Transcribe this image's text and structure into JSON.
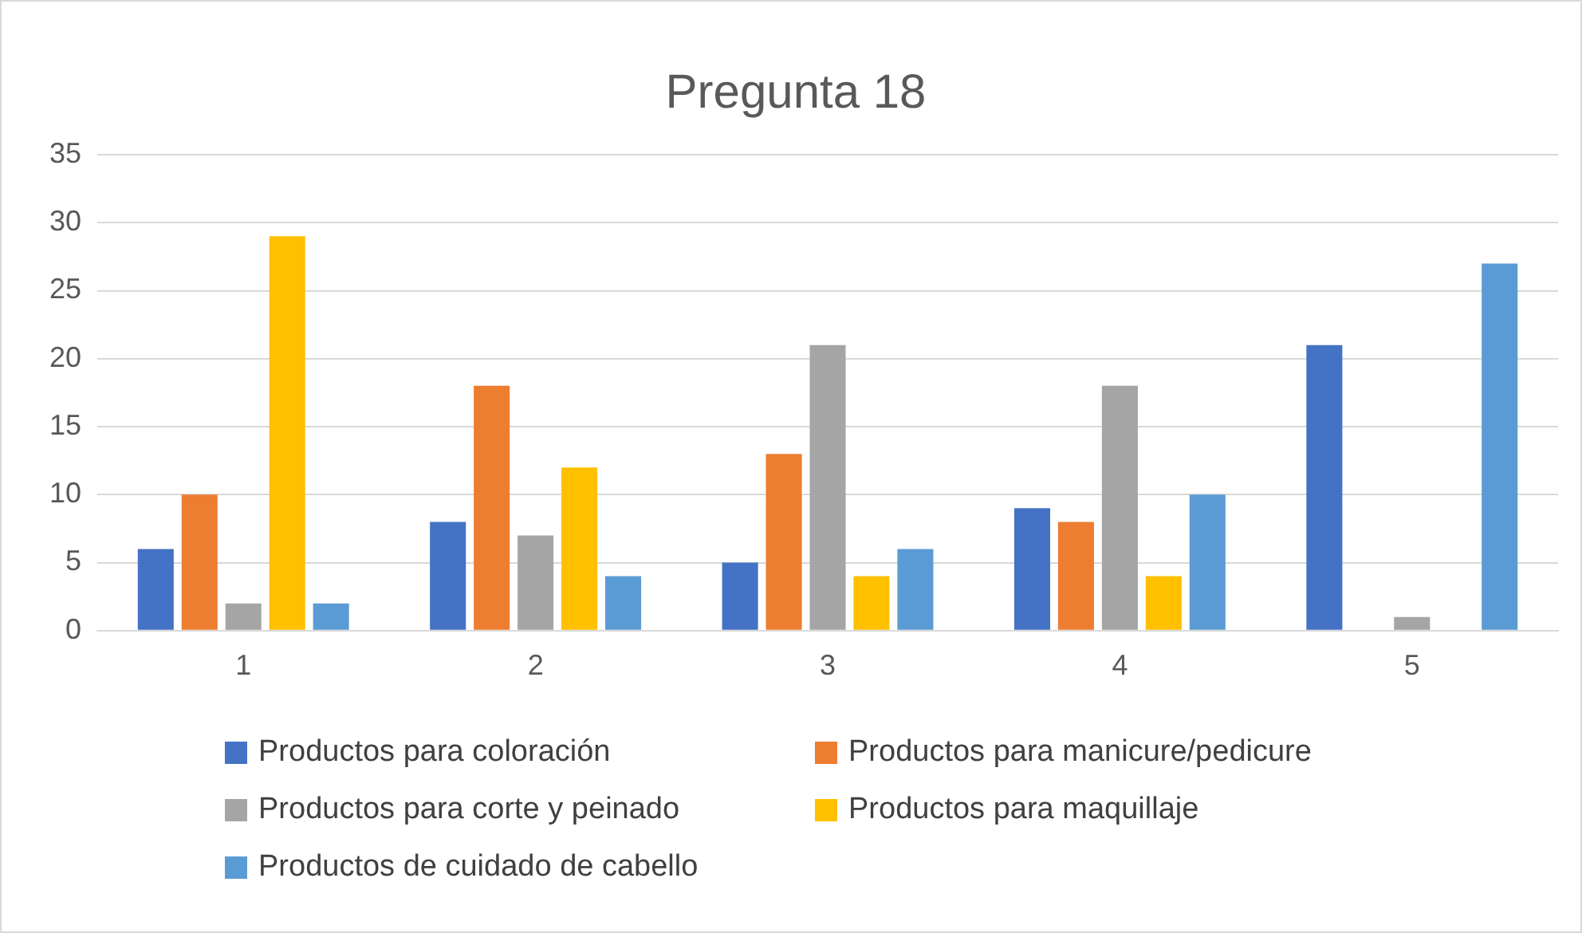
{
  "chart_data": {
    "type": "bar",
    "title": "Pregunta 18",
    "categories": [
      "1",
      "2",
      "3",
      "4",
      "5"
    ],
    "series": [
      {
        "name": "Productos para coloración",
        "color": "#4472c4",
        "values": [
          6,
          8,
          5,
          9,
          21
        ]
      },
      {
        "name": "Productos para manicure/pedicure",
        "color": "#ed7d31",
        "values": [
          10,
          18,
          13,
          8,
          0
        ]
      },
      {
        "name": "Productos para corte y peinado",
        "color": "#a5a5a5",
        "values": [
          2,
          7,
          21,
          18,
          1
        ]
      },
      {
        "name": "Productos para maquillaje",
        "color": "#ffc000",
        "values": [
          29,
          12,
          4,
          4,
          0
        ]
      },
      {
        "name": "Productos de cuidado de cabello",
        "color": "#5b9bd5",
        "values": [
          2,
          4,
          6,
          10,
          27
        ]
      }
    ],
    "ylim": [
      0,
      35
    ],
    "yticks": [
      0,
      5,
      10,
      15,
      20,
      25,
      30,
      35
    ],
    "grid": "y",
    "legend": "bottom"
  }
}
